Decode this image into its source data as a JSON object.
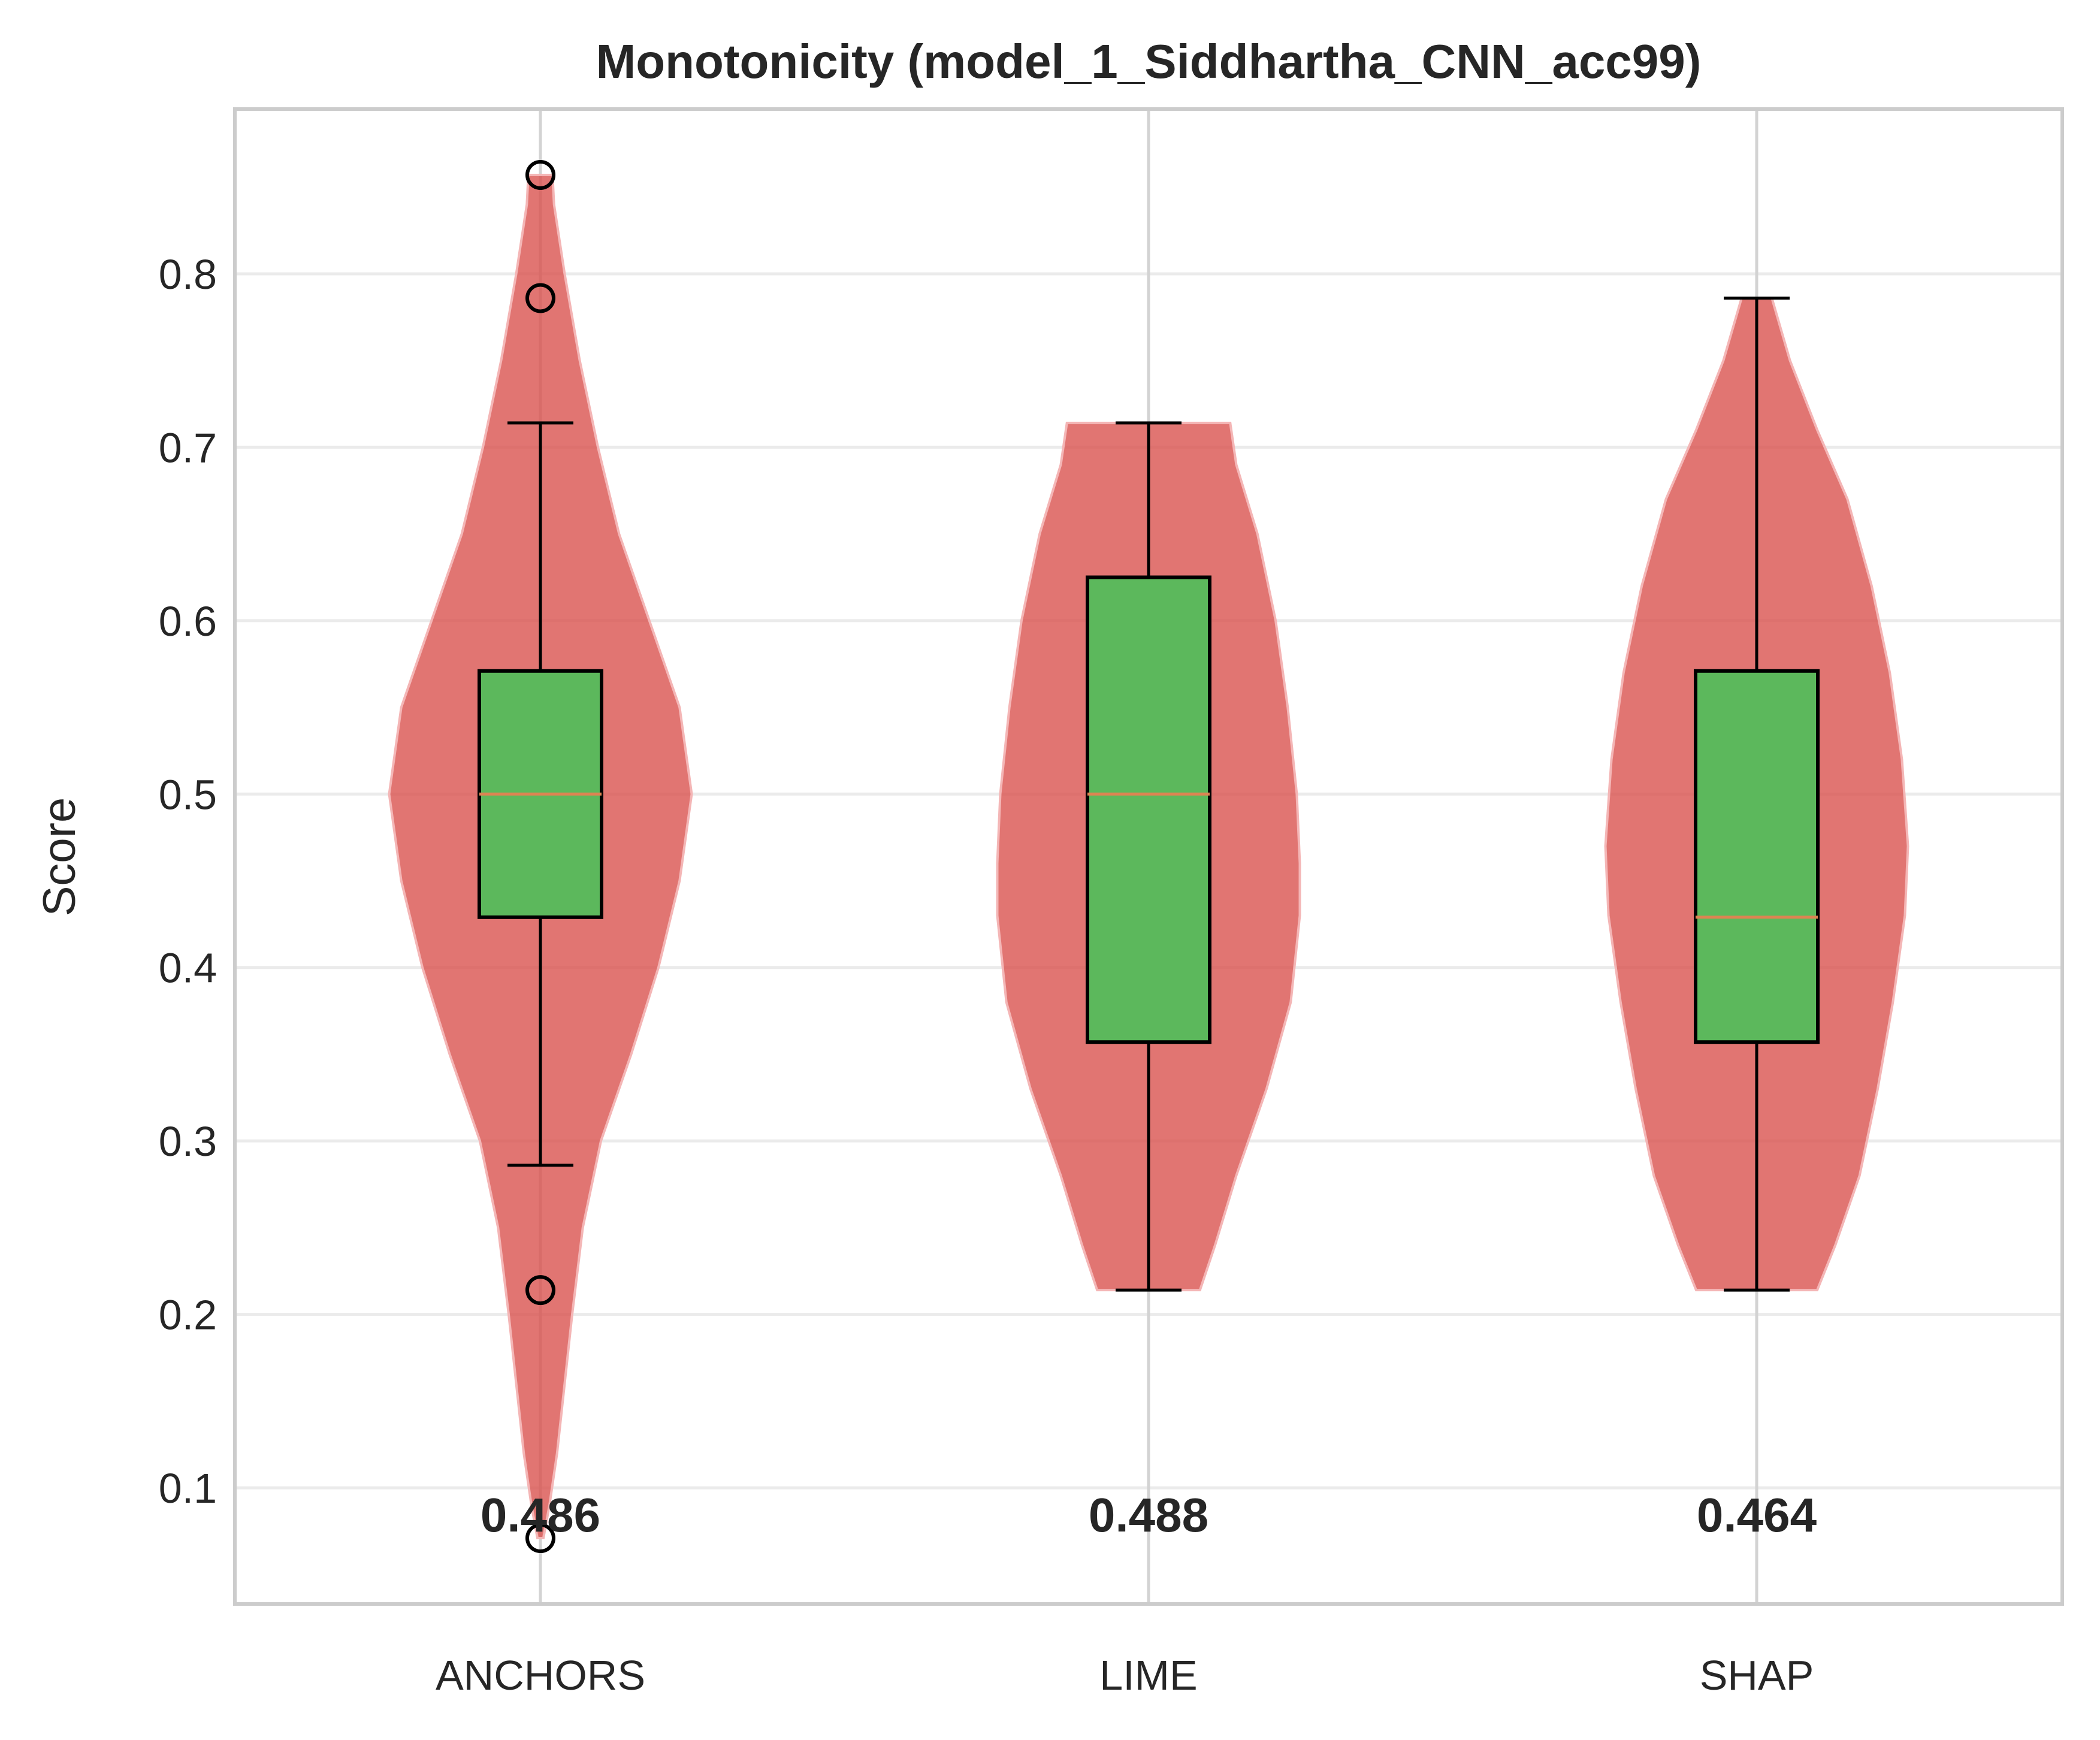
{
  "chart_data": {
    "type": "violin",
    "title": "Monotonicity (model_1_Siddhartha_CNN_acc99)",
    "xlabel": "",
    "ylabel": "Score",
    "ylim": [
      0.033,
      0.895
    ],
    "yticks": [
      0.1,
      0.2,
      0.3,
      0.4,
      0.5,
      0.6,
      0.7,
      0.8
    ],
    "ytick_labels": [
      "0.1",
      "0.2",
      "0.3",
      "0.4",
      "0.5",
      "0.6",
      "0.7",
      "0.8"
    ],
    "categories": [
      "ANCHORS",
      "LIME",
      "SHAP"
    ],
    "grid": true,
    "colors": {
      "violin": "#d9534f",
      "violin_edge": "#f4b6b6",
      "box": "#5cb85c",
      "median": "#dd8452",
      "whisker": "#000000",
      "grid": "#ebebeb",
      "spine": "#cccccc",
      "text": "#262626"
    },
    "series": [
      {
        "category": "ANCHORS",
        "mean_label": "0.486",
        "box": {
          "q1": 0.429,
          "median": 0.5,
          "q3": 0.571,
          "whisker_low": 0.286,
          "whisker_high": 0.714
        },
        "outliers": [
          0.071,
          0.214,
          0.786,
          0.857
        ],
        "violin": {
          "y": [
            0.071,
            0.09,
            0.12,
            0.16,
            0.2,
            0.25,
            0.3,
            0.35,
            0.4,
            0.45,
            0.5,
            0.55,
            0.6,
            0.65,
            0.7,
            0.75,
            0.8,
            0.84,
            0.857
          ],
          "half_width": [
            0.01,
            0.03,
            0.055,
            0.08,
            0.105,
            0.14,
            0.2,
            0.3,
            0.39,
            0.46,
            0.5,
            0.46,
            0.36,
            0.26,
            0.19,
            0.13,
            0.08,
            0.045,
            0.04
          ]
        }
      },
      {
        "category": "LIME",
        "mean_label": "0.488",
        "box": {
          "q1": 0.357,
          "median": 0.5,
          "q3": 0.625,
          "whisker_low": 0.214,
          "whisker_high": 0.714
        },
        "outliers": [],
        "violin": {
          "y": [
            0.214,
            0.24,
            0.28,
            0.33,
            0.38,
            0.43,
            0.46,
            0.5,
            0.55,
            0.6,
            0.65,
            0.69,
            0.714
          ],
          "half_width": [
            0.17,
            0.22,
            0.29,
            0.39,
            0.47,
            0.5,
            0.5,
            0.49,
            0.46,
            0.42,
            0.36,
            0.29,
            0.27
          ]
        }
      },
      {
        "category": "SHAP",
        "mean_label": "0.464",
        "box": {
          "q1": 0.357,
          "median": 0.429,
          "q3": 0.571,
          "whisker_low": 0.214,
          "whisker_high": 0.786
        },
        "outliers": [],
        "violin": {
          "y": [
            0.214,
            0.24,
            0.28,
            0.33,
            0.38,
            0.43,
            0.47,
            0.52,
            0.57,
            0.62,
            0.67,
            0.71,
            0.75,
            0.786
          ],
          "half_width": [
            0.2,
            0.26,
            0.34,
            0.4,
            0.45,
            0.49,
            0.5,
            0.48,
            0.44,
            0.38,
            0.3,
            0.2,
            0.11,
            0.05
          ]
        }
      }
    ]
  }
}
